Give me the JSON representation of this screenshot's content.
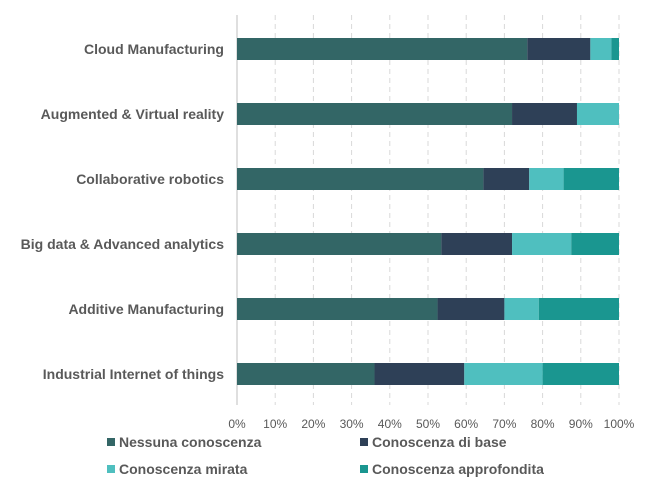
{
  "chart_data": {
    "type": "bar",
    "orientation": "horizontal",
    "stacked": "percent",
    "categories": [
      "Cloud Manufacturing",
      "Augmented & Virtual reality",
      "Collaborative robotics",
      "Big data & Advanced analytics",
      "Additive Manufacturing",
      "Industrial Internet of things"
    ],
    "series": [
      {
        "name": "Nessuna conoscenza",
        "color": "#336666",
        "values": [
          76,
          72,
          64.5,
          53.5,
          52.5,
          36
        ]
      },
      {
        "name": "Conoscenza di base",
        "color": "#2e4057",
        "values": [
          16.5,
          17,
          12,
          18.5,
          17.5,
          23.5
        ]
      },
      {
        "name": "Conoscenza mirata",
        "color": "#4fbfbf",
        "values": [
          5.5,
          11,
          9,
          15.5,
          9,
          20.5
        ]
      },
      {
        "name": "Conoscenza approfondita",
        "color": "#1a9690",
        "values": [
          2,
          0,
          14.5,
          12.5,
          21,
          20
        ]
      }
    ],
    "xlim": [
      0,
      100
    ],
    "x_ticks": [
      "0%",
      "10%",
      "20%",
      "30%",
      "40%",
      "50%",
      "60%",
      "70%",
      "80%",
      "90%",
      "100%"
    ],
    "grid": true,
    "legend_position": "bottom",
    "title": "",
    "xlabel": "",
    "ylabel": ""
  }
}
